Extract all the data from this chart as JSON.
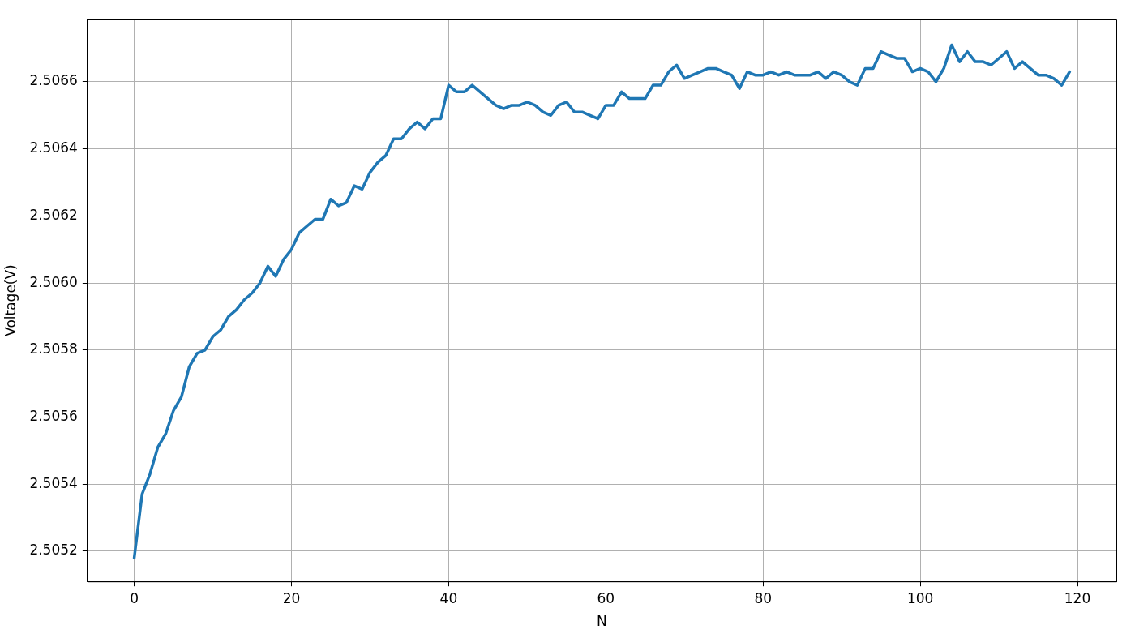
{
  "chart_data": {
    "type": "line",
    "xlabel": "N",
    "ylabel": "Voltage(V)",
    "grid": true,
    "marker": "none",
    "line_style": "solid",
    "x": [
      0,
      1,
      2,
      3,
      4,
      5,
      6,
      7,
      8,
      9,
      10,
      11,
      12,
      13,
      14,
      15,
      16,
      17,
      18,
      19,
      20,
      21,
      22,
      23,
      24,
      25,
      26,
      27,
      28,
      29,
      30,
      31,
      32,
      33,
      34,
      35,
      36,
      37,
      38,
      39,
      40,
      41,
      42,
      43,
      44,
      45,
      46,
      47,
      48,
      49,
      50,
      51,
      52,
      53,
      54,
      55,
      56,
      57,
      58,
      59,
      60,
      61,
      62,
      63,
      64,
      65,
      66,
      67,
      68,
      69,
      70,
      71,
      72,
      73,
      74,
      75,
      76,
      77,
      78,
      79,
      80,
      81,
      82,
      83,
      84,
      85,
      86,
      87,
      88,
      89,
      90,
      91,
      92,
      93,
      94,
      95,
      96,
      97,
      98,
      99,
      100,
      101,
      102,
      103,
      104,
      105,
      106,
      107,
      108,
      109,
      110,
      111,
      112,
      113,
      114,
      115,
      116,
      117,
      118,
      119
    ],
    "series": [
      {
        "color": "#1f77b4",
        "values": [
          2.50518,
          2.50537,
          2.50543,
          2.50551,
          2.50555,
          2.50562,
          2.50566,
          2.50575,
          2.50579,
          2.5058,
          2.50584,
          2.50586,
          2.5059,
          2.50592,
          2.50595,
          2.50597,
          2.506,
          2.50605,
          2.50602,
          2.50607,
          2.5061,
          2.50615,
          2.50617,
          2.50619,
          2.50619,
          2.50625,
          2.50623,
          2.50624,
          2.50629,
          2.50628,
          2.50633,
          2.50636,
          2.50638,
          2.50643,
          2.50643,
          2.50646,
          2.50648,
          2.50646,
          2.50649,
          2.50649,
          2.50659,
          2.50657,
          2.50657,
          2.50659,
          2.50657,
          2.50655,
          2.50653,
          2.50652,
          2.50653,
          2.50653,
          2.50654,
          2.50653,
          2.50651,
          2.5065,
          2.50653,
          2.50654,
          2.50651,
          2.50651,
          2.5065,
          2.50649,
          2.50653,
          2.50653,
          2.50657,
          2.50655,
          2.50655,
          2.50655,
          2.50659,
          2.50659,
          2.50663,
          2.50665,
          2.50661,
          2.50662,
          2.50663,
          2.50664,
          2.50664,
          2.50663,
          2.50662,
          2.50658,
          2.50663,
          2.50662,
          2.50662,
          2.50663,
          2.50662,
          2.50663,
          2.50662,
          2.50662,
          2.50662,
          2.50663,
          2.50661,
          2.50663,
          2.50662,
          2.5066,
          2.50659,
          2.50664,
          2.50664,
          2.50669,
          2.50668,
          2.50667,
          2.50667,
          2.50663,
          2.50664,
          2.50663,
          2.5066,
          2.50664,
          2.50671,
          2.50666,
          2.50669,
          2.50666,
          2.50666,
          2.50665,
          2.50667,
          2.50669,
          2.50664,
          2.50666,
          2.50664,
          2.50662,
          2.50662,
          2.50661,
          2.50659,
          2.50663
        ]
      }
    ],
    "xlim": [
      -5.95,
      124.95
    ],
    "xticks": [
      0,
      20,
      40,
      60,
      80,
      100,
      120
    ],
    "ylim": [
      2.50511,
      2.506786
    ],
    "yticks": [
      2.5052,
      2.5054,
      2.5056,
      2.5058,
      {
        "value": 2.506,
        "label": "2.5060"
      },
      2.5062,
      2.5064,
      2.5066
    ]
  }
}
